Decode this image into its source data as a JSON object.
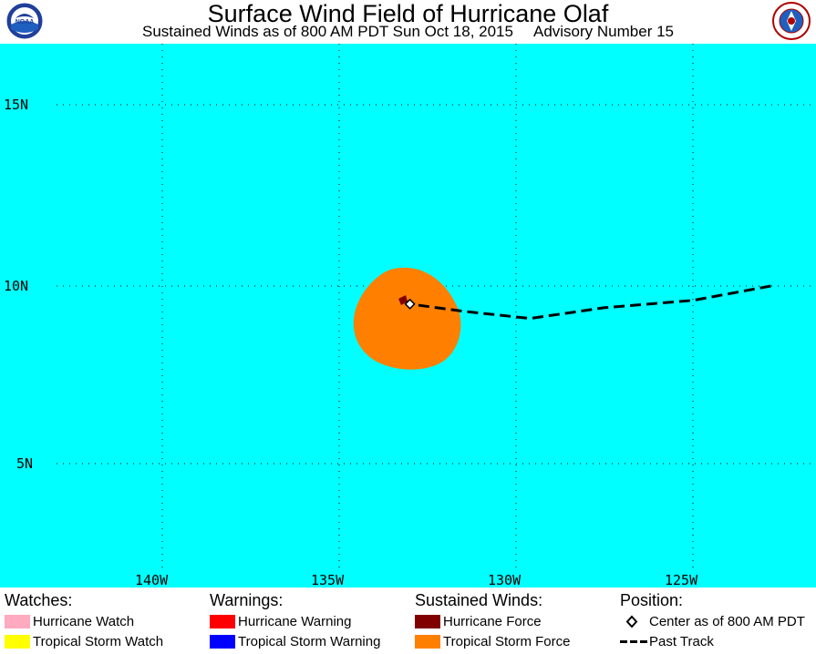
{
  "header": {
    "title": "Surface Wind Field of Hurricane Olaf",
    "subtitle_time": "Sustained Winds as of 800 AM PDT Sun Oct 18, 2015",
    "subtitle_advisory": "Advisory Number 15",
    "left_logo": {
      "icon": "noaa-logo-icon",
      "text": "NOAA"
    },
    "right_logo": {
      "icon": "nws-logo-icon",
      "text": "NATIONAL WEATHER SERVICE"
    }
  },
  "map": {
    "ocean_color": "#00ffff",
    "lat_labels": [
      "15N",
      "10N",
      "5N"
    ],
    "lon_labels": [
      "140W",
      "135W",
      "130W",
      "125W"
    ],
    "storm": {
      "center_lon": -133.0,
      "center_lat": 9.5,
      "tropical_storm_color": "#ff8000",
      "hurricane_color": "#800000"
    },
    "past_track": [
      [
        -122.8,
        10.0
      ],
      [
        -125.0,
        9.6
      ],
      [
        -127.5,
        9.4
      ],
      [
        -129.6,
        9.1
      ],
      [
        -131.5,
        9.3
      ],
      [
        -133.0,
        9.5
      ]
    ]
  },
  "legend": {
    "watches": {
      "title": "Watches:",
      "items": [
        {
          "label": "Hurricane Watch",
          "color": "#ffaac0"
        },
        {
          "label": "Tropical Storm Watch",
          "color": "#ffff00"
        }
      ]
    },
    "warnings": {
      "title": "Warnings:",
      "items": [
        {
          "label": "Hurricane Warning",
          "color": "#ff0000"
        },
        {
          "label": "Tropical Storm Warning",
          "color": "#0000ff"
        }
      ]
    },
    "winds": {
      "title": "Sustained Winds:",
      "items": [
        {
          "label": "Hurricane Force",
          "color": "#800000"
        },
        {
          "label": "Tropical Storm Force",
          "color": "#ff8000"
        }
      ]
    },
    "position": {
      "title": "Position:",
      "items": [
        {
          "label": "Center as of 800 AM PDT",
          "icon": "diamond-icon"
        },
        {
          "label": "Past Track",
          "icon": "dashed-line-icon"
        }
      ]
    }
  }
}
